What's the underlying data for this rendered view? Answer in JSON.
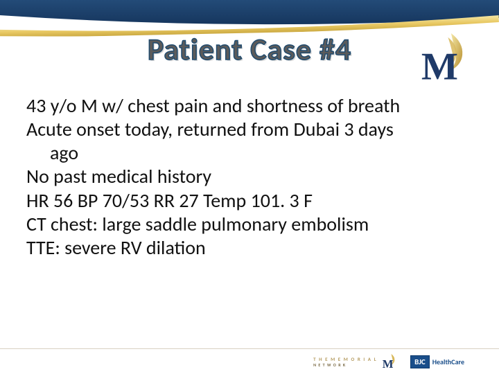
{
  "colors": {
    "ribbon_dark": "#16365e",
    "ribbon_dark2": "#234b78",
    "ribbon_gold_light": "#f3e6a5",
    "ribbon_gold_dark": "#c8a63e",
    "title_fill": "#6b6b6b",
    "title_stroke": "#204b6e",
    "body_text": "#111111",
    "logo_navy": "#1f3a68",
    "logo_gold1": "#e9c964",
    "logo_gold2": "#b8902f",
    "footer_gold": "#b49a5e",
    "bjc_blue": "#1a4e8a"
  },
  "title": "Patient Case #4",
  "body_lines": [
    {
      "text": "43 y/o M w/ chest pain and shortness of breath",
      "cont": false
    },
    {
      "text": "Acute onset today, returned from Dubai 3 days",
      "cont": false
    },
    {
      "text": "ago",
      "cont": true
    },
    {
      "text": "No past medical history",
      "cont": false
    },
    {
      "text": "HR  56  BP  70/53  RR 27  Temp 101. 3 F",
      "cont": false
    },
    {
      "text": "CT chest: large saddle pulmonary embolism",
      "cont": false
    },
    {
      "text": "TTE: severe RV dilation",
      "cont": false
    }
  ],
  "footer": {
    "memorial_top": "T H E   M E M O R I A L",
    "memorial_bottom": "N E T W O R K",
    "bjc_box": "BJC",
    "bjc_text": "HealthCare"
  },
  "typography": {
    "title_fontsize": 44,
    "title_weight": 700,
    "body_fontsize": 28,
    "body_lineheight": 1.22,
    "footer_fontsize": 7
  }
}
